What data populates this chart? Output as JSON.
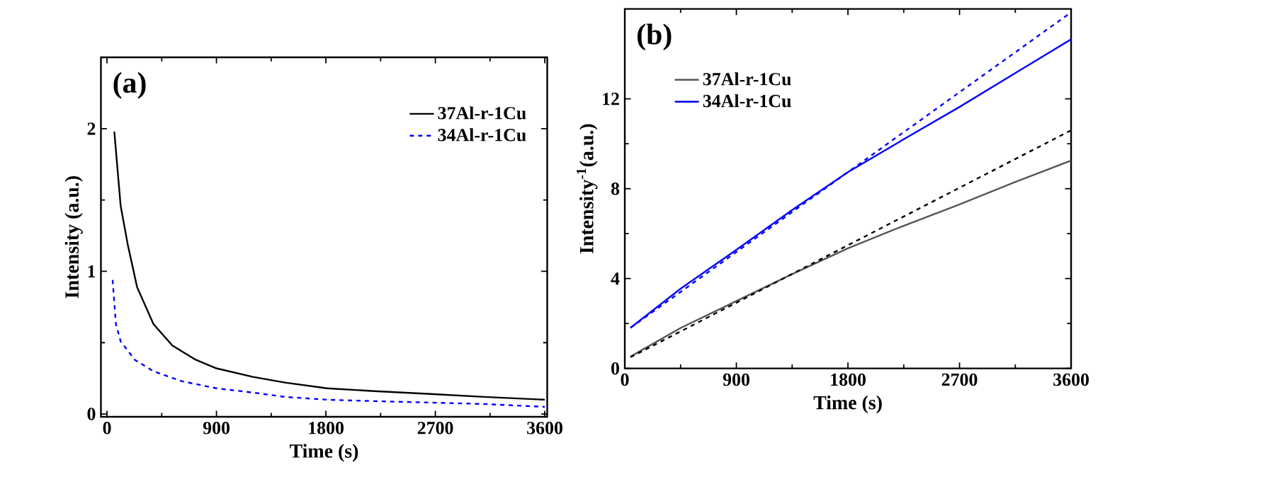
{
  "chart_data": [
    {
      "type": "line",
      "title": "(a)",
      "xlabel": "Time (s)",
      "ylabel": "Intensity (a.u.)",
      "xlim": [
        -50,
        3620
      ],
      "ylim": [
        -0.02,
        2.5
      ],
      "xticks": [
        0,
        900,
        1800,
        2700,
        3600
      ],
      "yticks": [
        0,
        1,
        2
      ],
      "legend": "top right",
      "series": [
        {
          "name": "37Al-r-1Cu",
          "color": "#000000",
          "line_style": "solid",
          "x": [
            60,
            112,
            170,
            247,
            382,
            537,
            730,
            900,
            1200,
            1463,
            1810,
            2200,
            2660,
            3100,
            3600
          ],
          "values": [
            1.98,
            1.46,
            1.19,
            0.89,
            0.63,
            0.48,
            0.38,
            0.32,
            0.26,
            0.22,
            0.18,
            0.16,
            0.14,
            0.12,
            0.1
          ]
        },
        {
          "name": "34Al-r-1Cu",
          "color": "#0000ff",
          "line_style": "dashed",
          "x": [
            46,
            73,
            112,
            228,
            382,
            614,
            900,
            1200,
            1463,
            1810,
            2200,
            2660,
            3100,
            3600
          ],
          "values": [
            0.94,
            0.63,
            0.51,
            0.38,
            0.3,
            0.23,
            0.18,
            0.15,
            0.12,
            0.1,
            0.09,
            0.08,
            0.07,
            0.05
          ]
        }
      ]
    },
    {
      "type": "line",
      "title": "(b)",
      "xlabel": "Time (s)",
      "ylabel": "Intensity$^{-1}$(a.u.)",
      "xlim": [
        0,
        3600
      ],
      "ylim": [
        0,
        16
      ],
      "xticks": [
        0,
        900,
        1800,
        2700,
        3600
      ],
      "yticks": [
        0,
        4,
        8,
        12
      ],
      "legend": "top left",
      "series": [
        {
          "name": "37Al-r-1Cu",
          "color": "#555555",
          "line_style": "solid",
          "x": [
            46,
            450,
            900,
            1350,
            1800,
            2250,
            2700,
            3150,
            3600
          ],
          "values": [
            0.53,
            1.8,
            3.0,
            4.2,
            5.35,
            6.35,
            7.3,
            8.3,
            9.25
          ]
        },
        {
          "name": "34Al-r-1Cu",
          "color": "#0000ff",
          "line_style": "solid",
          "x": [
            46,
            450,
            900,
            1350,
            1800,
            2250,
            2700,
            3150,
            3600
          ],
          "values": [
            1.81,
            3.55,
            5.28,
            7.05,
            8.74,
            10.2,
            11.64,
            13.15,
            14.65
          ]
        },
        {
          "color": "#000000",
          "line_style": "dashed",
          "x": [
            46,
            3600
          ],
          "values": [
            0.5,
            10.6
          ]
        },
        {
          "color": "#0000ff",
          "line_style": "dashed",
          "x": [
            46,
            3600
          ],
          "values": [
            1.81,
            15.85
          ]
        }
      ]
    }
  ]
}
